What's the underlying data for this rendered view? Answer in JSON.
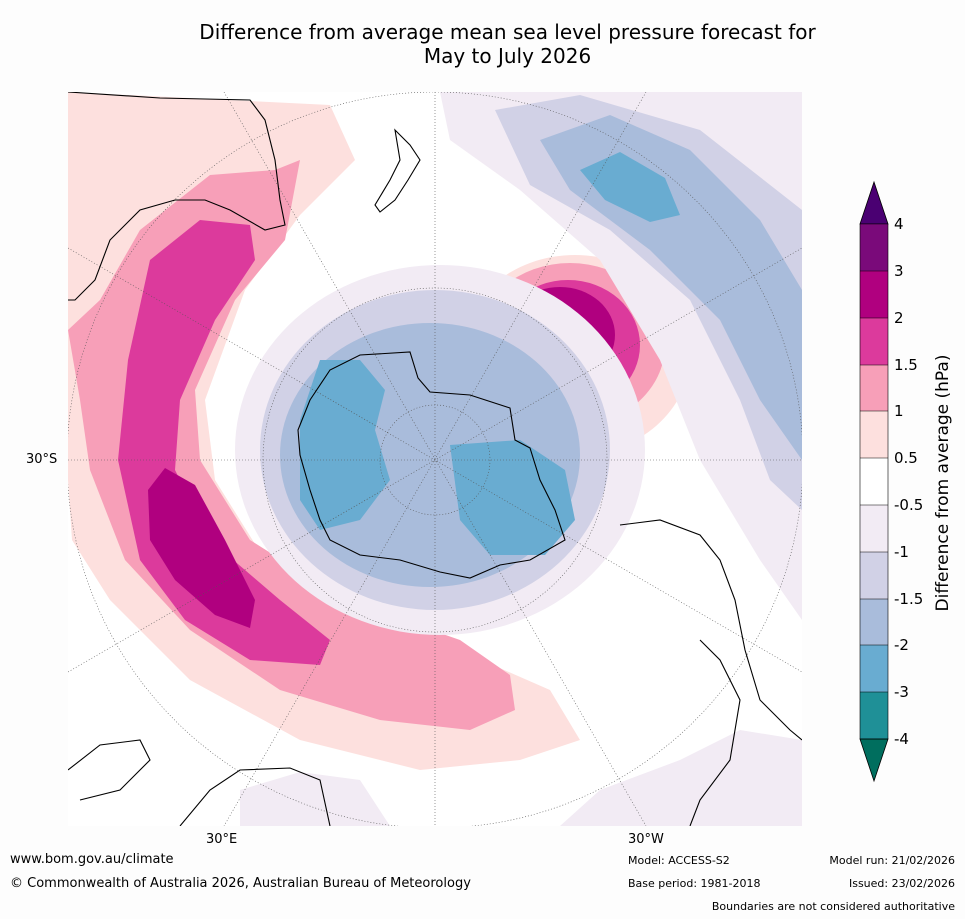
{
  "title": {
    "line1": "Difference from average mean sea level pressure forecast for",
    "line2": "May to July 2026"
  },
  "map": {
    "projection": "south polar stereographic",
    "lat_labels": {
      "west_edge": "30°S"
    },
    "lon_labels": {
      "bottom_left": "30°E",
      "bottom_right": "30°W"
    }
  },
  "colorbar": {
    "title": "Difference from average (hPa)",
    "ticks": [
      "4",
      "3",
      "2",
      "1.5",
      "1",
      "0.5",
      "-0.5",
      "-1",
      "-1.5",
      "-2",
      "-3",
      "-4"
    ],
    "colors": {
      "above_4": "#4a0072",
      "3_to_4": "#7a0a7a",
      "2_to_3": "#b0007f",
      "1.5_to_2": "#dc3a9c",
      "1_to_1.5": "#f79fb8",
      "0.5_to_1": "#fde0de",
      "neutral": "#ffffff",
      "-1_to_-0.5": "#f2ebf4",
      "-1.5_to_-1": "#d1d1e6",
      "-2_to_-1.5": "#a9bcdb",
      "-3_to_-2": "#69acd1",
      "-4_to_-3": "#1f9097",
      "below_-4": "#006e5e"
    }
  },
  "footer": {
    "url": "www.bom.gov.au/climate",
    "copyright": "© Commonwealth of Australia 2026, Australian Bureau of Meteorology",
    "model": "Model: ACCESS-S2",
    "base_period": "Base period: 1981-2018",
    "model_run": "Model run: 21/02/2026",
    "issued": "Issued: 23/02/2026",
    "disclaimer": "Boundaries are not considered authoritative"
  }
}
